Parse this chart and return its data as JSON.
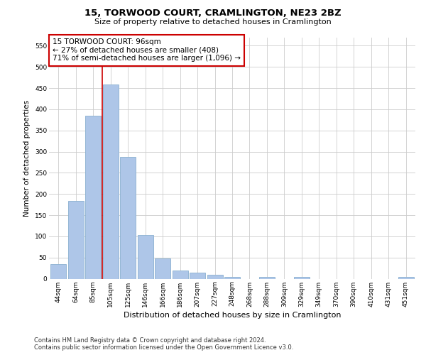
{
  "title": "15, TORWOOD COURT, CRAMLINGTON, NE23 2BZ",
  "subtitle": "Size of property relative to detached houses in Cramlington",
  "xlabel": "Distribution of detached houses by size in Cramlington",
  "ylabel": "Number of detached properties",
  "footer_line1": "Contains HM Land Registry data © Crown copyright and database right 2024.",
  "footer_line2": "Contains public sector information licensed under the Open Government Licence v3.0.",
  "bar_labels": [
    "44sqm",
    "64sqm",
    "85sqm",
    "105sqm",
    "125sqm",
    "146sqm",
    "166sqm",
    "186sqm",
    "207sqm",
    "227sqm",
    "248sqm",
    "268sqm",
    "288sqm",
    "309sqm",
    "329sqm",
    "349sqm",
    "370sqm",
    "390sqm",
    "410sqm",
    "431sqm",
    "451sqm"
  ],
  "bar_values": [
    35,
    183,
    385,
    458,
    287,
    103,
    47,
    20,
    15,
    10,
    5,
    0,
    4,
    0,
    4,
    0,
    0,
    0,
    0,
    0,
    4
  ],
  "bar_color": "#aec6e8",
  "bar_edgecolor": "#8ab0d0",
  "ylim": [
    0,
    570
  ],
  "yticks": [
    0,
    50,
    100,
    150,
    200,
    250,
    300,
    350,
    400,
    450,
    500,
    550
  ],
  "vline_x": 2.5,
  "vline_color": "#cc0000",
  "annotation_text": "15 TORWOOD COURT: 96sqm\n← 27% of detached houses are smaller (408)\n71% of semi-detached houses are larger (1,096) →",
  "annotation_box_color": "#ffffff",
  "annotation_box_edgecolor": "#cc0000",
  "background_color": "#ffffff",
  "grid_color": "#cccccc",
  "title_fontsize": 9.5,
  "subtitle_fontsize": 8,
  "annotation_fontsize": 7.5,
  "ylabel_fontsize": 7.5,
  "xlabel_fontsize": 8,
  "tick_fontsize": 6.5,
  "footer_fontsize": 6
}
